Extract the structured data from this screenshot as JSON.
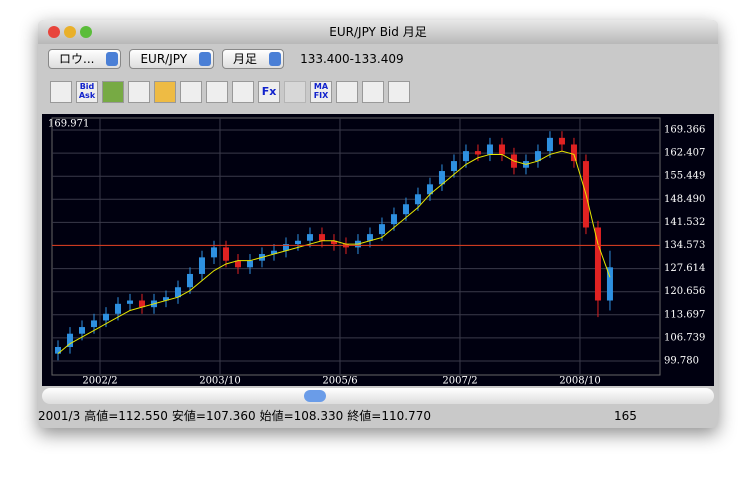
{
  "window": {
    "title": "EUR/JPY Bid 月足"
  },
  "toolbar": {
    "menus": [
      "ロウ...",
      "EUR/JPY",
      "月足"
    ],
    "quote": "133.400-133.409",
    "icon_labels": [
      "Bid",
      "Ask",
      "Fx",
      "MA",
      "FIX"
    ]
  },
  "chart_data": {
    "type": "candlestick",
    "corner_label": "169.971",
    "open": [
      102,
      104,
      108,
      110,
      112,
      114,
      117,
      118,
      116,
      118,
      119,
      122,
      126,
      131,
      134,
      130,
      128,
      130,
      132,
      133,
      135,
      136,
      138,
      136,
      135,
      134,
      136,
      138,
      141,
      144,
      147,
      150,
      153,
      157,
      160,
      163,
      162,
      165,
      162,
      158,
      160,
      163,
      167,
      165,
      160,
      140,
      118
    ],
    "high": [
      106,
      110,
      112,
      114,
      116,
      119,
      120,
      120,
      120,
      121,
      124,
      128,
      133,
      136,
      136,
      132,
      132,
      134,
      135,
      137,
      138,
      140,
      140,
      138,
      137,
      138,
      140,
      143,
      146,
      149,
      152,
      155,
      159,
      162,
      165,
      165,
      167,
      167,
      164,
      162,
      165,
      169,
      169,
      167,
      162,
      142,
      133
    ],
    "low": [
      100,
      102,
      106,
      108,
      110,
      112,
      115,
      114,
      114,
      116,
      117,
      120,
      124,
      129,
      128,
      126,
      126,
      128,
      130,
      131,
      133,
      134,
      134,
      133,
      132,
      132,
      134,
      136,
      139,
      142,
      145,
      148,
      151,
      155,
      158,
      160,
      160,
      160,
      156,
      156,
      158,
      161,
      163,
      158,
      138,
      113,
      115
    ],
    "close": [
      104,
      108,
      110,
      112,
      114,
      117,
      118,
      116,
      118,
      119,
      122,
      126,
      131,
      134,
      130,
      128,
      130,
      132,
      133,
      135,
      136,
      138,
      136,
      135,
      134,
      136,
      138,
      141,
      144,
      147,
      150,
      153,
      157,
      160,
      163,
      162,
      165,
      162,
      158,
      160,
      163,
      167,
      165,
      160,
      140,
      118,
      128
    ],
    "up_color": "#2e90e0",
    "down_color": "#e02222",
    "ma": {
      "color": "#e6e600",
      "values": [
        102,
        105,
        107,
        109,
        111,
        113,
        115,
        116,
        117,
        118,
        119,
        121,
        124,
        127,
        129,
        130,
        130,
        131,
        132,
        133,
        134,
        135,
        136,
        136,
        135,
        135,
        136,
        137,
        140,
        143,
        146,
        150,
        153,
        156,
        159,
        161,
        162,
        162,
        160,
        159,
        160,
        162,
        163,
        162,
        150,
        135,
        125
      ]
    },
    "price_line": 134.6,
    "price_line_color": "#e03a1a",
    "ylim": [
      95.56,
      172.98
    ],
    "yticks": [
      {
        "value": 99.78,
        "label": "99.780"
      },
      106.739,
      113.697,
      120.656,
      127.614,
      134.573,
      141.532,
      {
        "value": 148.49,
        "label": "148.490"
      },
      155.449,
      162.407,
      169.366
    ],
    "xlim": [
      -0.5,
      50.17
    ],
    "xticks": [
      {
        "value": 3.5,
        "label": "2002/2"
      },
      {
        "value": 13.5,
        "label": "2003/10"
      },
      {
        "value": 23.5,
        "label": "2005/6"
      },
      {
        "value": 33.5,
        "label": "2007/2"
      },
      {
        "value": 43.5,
        "label": "2008/10"
      }
    ],
    "grid": true
  },
  "status": {
    "items": [
      "2001/3",
      "高値=112.550",
      "安値=107.360",
      "始値=108.330",
      "終値=110.770"
    ],
    "count": "165"
  }
}
